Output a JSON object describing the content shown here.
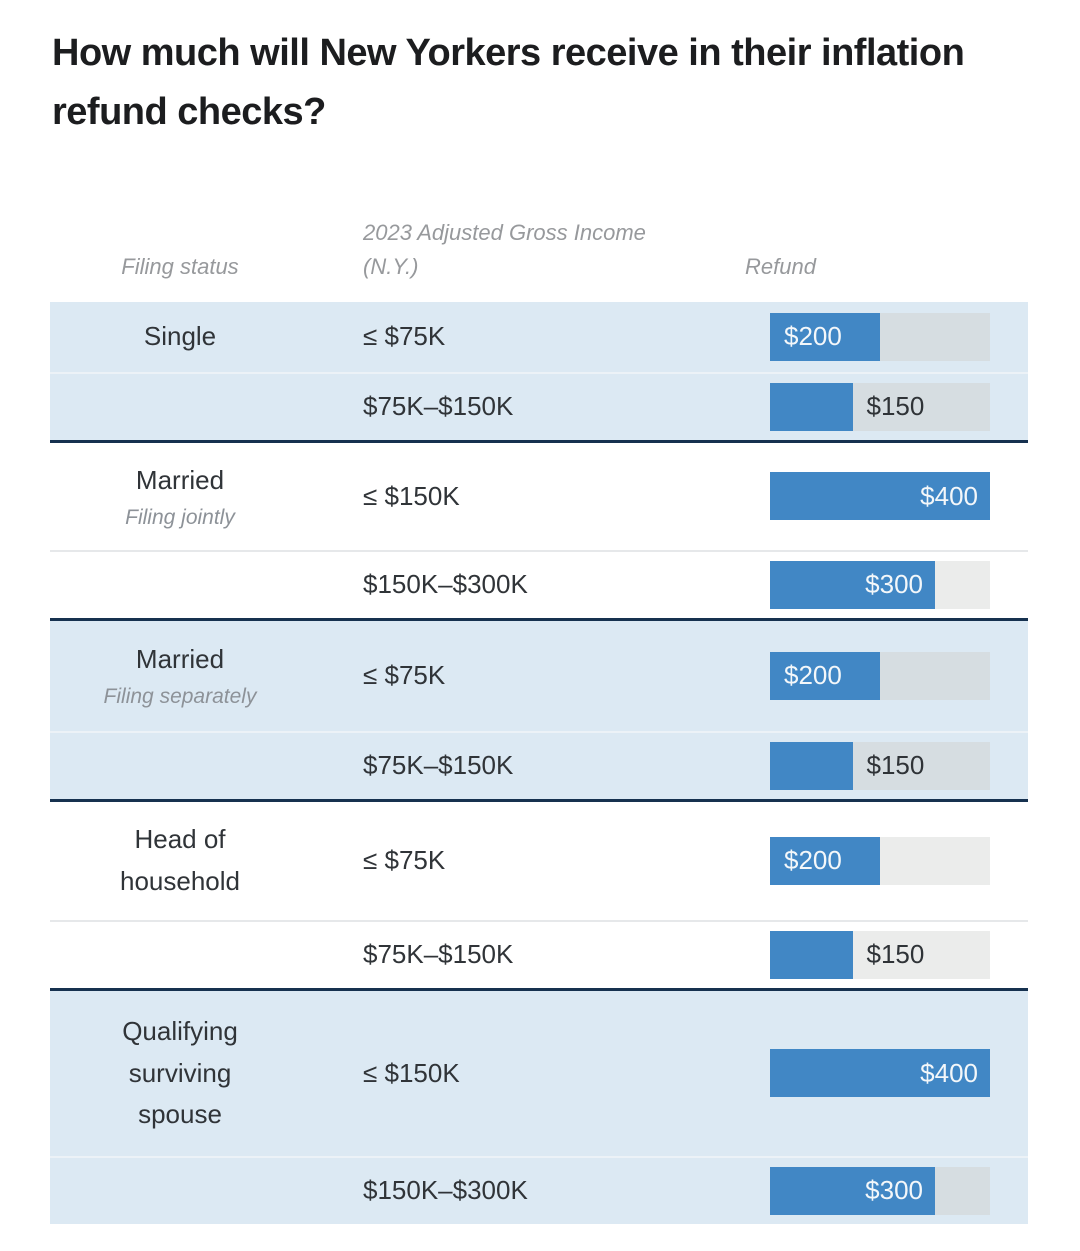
{
  "chart_data": {
    "type": "bar",
    "title": "How much will New Yorkers receive in their inflation refund checks?",
    "columns": {
      "status": "Filing status",
      "income": "2023 Adjusted Gross Income (N.Y.)",
      "refund": "Refund"
    },
    "max_value": 400,
    "bar_color": "#4187c5",
    "stripe_color": "#dce9f3",
    "separator_color": "#16314f",
    "groups": [
      {
        "status": "Single",
        "status_sub": "",
        "rows": [
          {
            "income": "≤ $75K",
            "refund": 200,
            "refund_label": "$200",
            "label_position": "inside-left"
          },
          {
            "income": "$75K–$150K",
            "refund": 150,
            "refund_label": "$150",
            "label_position": "outside"
          }
        ]
      },
      {
        "status": "Married",
        "status_sub": "Filing jointly",
        "rows": [
          {
            "income": "≤ $150K",
            "refund": 400,
            "refund_label": "$400",
            "label_position": "inside-right"
          },
          {
            "income": "$150K–$300K",
            "refund": 300,
            "refund_label": "$300",
            "label_position": "inside-right"
          }
        ]
      },
      {
        "status": "Married",
        "status_sub": "Filing separately",
        "rows": [
          {
            "income": "≤ $75K",
            "refund": 200,
            "refund_label": "$200",
            "label_position": "inside-left"
          },
          {
            "income": "$75K–$150K",
            "refund": 150,
            "refund_label": "$150",
            "label_position": "outside"
          }
        ]
      },
      {
        "status": "Head of household",
        "status_sub": "",
        "rows": [
          {
            "income": "≤ $75K",
            "refund": 200,
            "refund_label": "$200",
            "label_position": "inside-left"
          },
          {
            "income": "$75K–$150K",
            "refund": 150,
            "refund_label": "$150",
            "label_position": "outside"
          }
        ]
      },
      {
        "status": "Qualifying surviving spouse",
        "status_sub": "",
        "rows": [
          {
            "income": "≤ $150K",
            "refund": 400,
            "refund_label": "$400",
            "label_position": "inside-right"
          },
          {
            "income": "$150K–$300K",
            "refund": 300,
            "refund_label": "$300",
            "label_position": "inside-right"
          }
        ]
      }
    ]
  }
}
